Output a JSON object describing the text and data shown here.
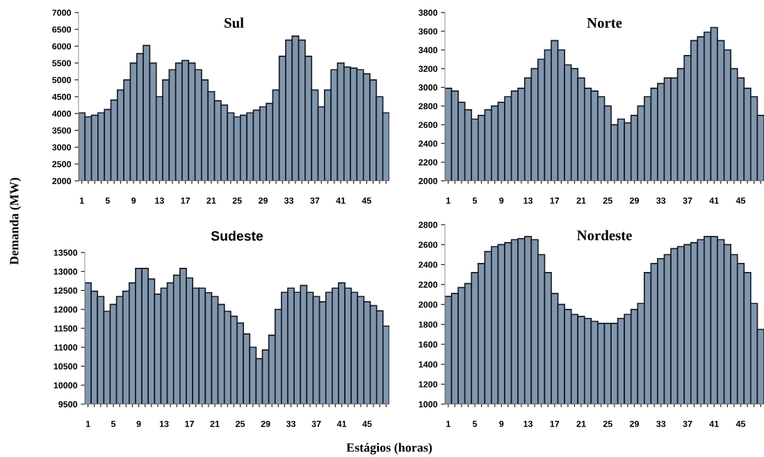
{
  "chart_data": [
    {
      "type": "bar",
      "title": "Sul",
      "ylabel": "Demanda (MW)",
      "categories": [
        "1",
        null,
        null,
        null,
        "5",
        null,
        null,
        null,
        "9",
        null,
        null,
        null,
        "13",
        null,
        null,
        null,
        "17",
        null,
        null,
        null,
        "21",
        null,
        null,
        null,
        "25",
        null,
        null,
        null,
        "29",
        null,
        null,
        null,
        "33",
        null,
        null,
        null,
        "37",
        null,
        null,
        null,
        "41",
        null,
        null,
        null,
        "45",
        null,
        null,
        null
      ],
      "color": "#8196ad",
      "values": [
        4020,
        3900,
        3950,
        4020,
        4120,
        4400,
        4700,
        5000,
        5500,
        5780,
        6020,
        5500,
        4500,
        5000,
        5300,
        5500,
        5580,
        5500,
        5300,
        5000,
        4650,
        4380,
        4250,
        4020,
        3900,
        3950,
        4020,
        4100,
        4200,
        4300,
        4700,
        5700,
        6180,
        6300,
        6180,
        5700,
        4700,
        4200,
        4700,
        5300,
        5500,
        5380,
        5350,
        5300,
        5180,
        5000,
        4500,
        4020
      ],
      "ylim": [
        2000,
        7000
      ],
      "yticks": [
        2000,
        2500,
        3000,
        3500,
        4000,
        4500,
        5000,
        5500,
        6000,
        6500,
        7000
      ],
      "grid": false,
      "legend": false
    },
    {
      "type": "bar",
      "title": "Norte",
      "categories": [
        "1",
        null,
        null,
        null,
        "5",
        null,
        null,
        null,
        "9",
        null,
        null,
        null,
        "13",
        null,
        null,
        null,
        "17",
        null,
        null,
        null,
        "21",
        null,
        null,
        null,
        "25",
        null,
        null,
        null,
        "29",
        null,
        null,
        null,
        "33",
        null,
        null,
        null,
        "37",
        null,
        null,
        null,
        "41",
        null,
        null,
        null,
        "45",
        null,
        null,
        null
      ],
      "color": "#8196ad",
      "values": [
        2990,
        2960,
        2840,
        2760,
        2660,
        2700,
        2760,
        2800,
        2840,
        2900,
        2960,
        2990,
        3100,
        3200,
        3300,
        3400,
        3500,
        3400,
        3240,
        3200,
        3100,
        2990,
        2960,
        2900,
        2800,
        2600,
        2660,
        2620,
        2700,
        2800,
        2900,
        2990,
        3040,
        3100,
        3100,
        3200,
        3340,
        3500,
        3540,
        3590,
        3640,
        3500,
        3400,
        3200,
        3100,
        2990,
        2900,
        2700
      ],
      "ylim": [
        2000,
        3800
      ],
      "yticks": [
        2000,
        2200,
        2400,
        2600,
        2800,
        3000,
        3200,
        3400,
        3600,
        3800
      ],
      "grid": false,
      "legend": false
    },
    {
      "type": "bar",
      "title": "Sudeste",
      "xlabel": "Estágios (horas)",
      "categories": [
        "1",
        null,
        null,
        null,
        "5",
        null,
        null,
        null,
        "9",
        null,
        null,
        null,
        "13",
        null,
        null,
        null,
        "17",
        null,
        null,
        null,
        "21",
        null,
        null,
        null,
        "25",
        null,
        null,
        null,
        "29",
        null,
        null,
        null,
        "33",
        null,
        null,
        null,
        "37",
        null,
        null,
        null,
        "41",
        null,
        null,
        null,
        "45",
        null,
        null,
        null
      ],
      "color": "#8196ad",
      "values": [
        12700,
        12480,
        12340,
        11950,
        12130,
        12340,
        12480,
        12700,
        13080,
        13080,
        12800,
        12400,
        12560,
        12700,
        12900,
        13080,
        12830,
        12560,
        12560,
        12440,
        12340,
        12130,
        11950,
        11820,
        11640,
        11350,
        11000,
        10700,
        10930,
        11320,
        12000,
        12450,
        12560,
        12450,
        12630,
        12450,
        12340,
        12200,
        12450,
        12560,
        12700,
        12560,
        12450,
        12340,
        12200,
        12100,
        11960,
        11560
      ],
      "ylim": [
        9500,
        13500
      ],
      "yticks": [
        9500,
        10000,
        10500,
        11000,
        11500,
        12000,
        12500,
        13000,
        13500
      ],
      "grid": false,
      "legend": false
    },
    {
      "type": "bar",
      "title": "Nordeste",
      "categories": [
        "1",
        null,
        null,
        null,
        "5",
        null,
        null,
        null,
        "9",
        null,
        null,
        null,
        "13",
        null,
        null,
        null,
        "17",
        null,
        null,
        null,
        "21",
        null,
        null,
        null,
        "25",
        null,
        null,
        null,
        "29",
        null,
        null,
        null,
        "33",
        null,
        null,
        null,
        "37",
        null,
        null,
        null,
        "41",
        null,
        null,
        null,
        "45",
        null,
        null,
        null
      ],
      "color": "#8196ad",
      "values": [
        2080,
        2110,
        2170,
        2210,
        2320,
        2410,
        2530,
        2580,
        2600,
        2620,
        2650,
        2660,
        2680,
        2650,
        2500,
        2320,
        2110,
        2000,
        1950,
        1900,
        1880,
        1860,
        1830,
        1810,
        1810,
        1810,
        1860,
        1900,
        1950,
        2010,
        2320,
        2410,
        2460,
        2500,
        2560,
        2580,
        2600,
        2620,
        2650,
        2680,
        2680,
        2650,
        2600,
        2500,
        2410,
        2320,
        2010,
        1750
      ],
      "ylim": [
        1000,
        2800
      ],
      "yticks": [
        1000,
        1200,
        1400,
        1600,
        1800,
        2000,
        2200,
        2400,
        2600,
        2800
      ],
      "grid": false,
      "legend": false
    }
  ]
}
